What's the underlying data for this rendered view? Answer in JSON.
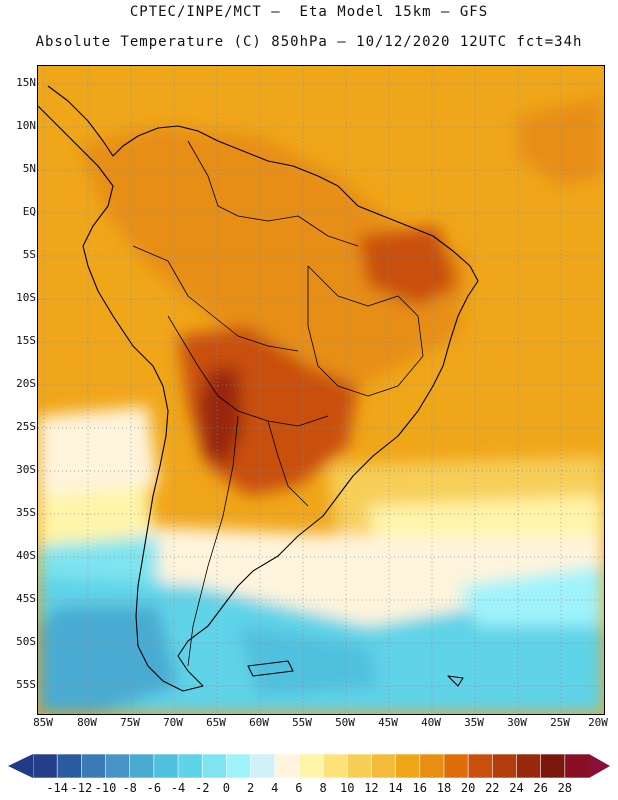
{
  "header": {
    "line1": "CPTEC/INPE/MCT –  Eta Model 15km – GFS",
    "line2": "Absolute Temperature (C) 850hPa – 10/12/2020 12UTC fct=34h"
  },
  "map": {
    "lat_labels": [
      "15N",
      "10N",
      "5N",
      "EQ",
      "5S",
      "10S",
      "15S",
      "20S",
      "25S",
      "30S",
      "35S",
      "40S",
      "45S",
      "50S",
      "55S"
    ],
    "lon_labels": [
      "85W",
      "80W",
      "75W",
      "70W",
      "65W",
      "60W",
      "55W",
      "50W",
      "45W",
      "40W",
      "35W",
      "30W",
      "25W",
      "20W"
    ]
  },
  "colorbar": {
    "labels": [
      "-14",
      "-12",
      "-10",
      "-8",
      "-6",
      "-4",
      "-2",
      "0",
      "2",
      "4",
      "6",
      "8",
      "10",
      "12",
      "14",
      "16",
      "18",
      "20",
      "22",
      "24",
      "26",
      "28"
    ],
    "colors": [
      "#233f8a",
      "#2a5a9f",
      "#3a7ab6",
      "#4a93c6",
      "#4aabd2",
      "#4fc0de",
      "#5fd3e8",
      "#7de4f0",
      "#9ff3fb",
      "#cff1f7",
      "#fff4dc",
      "#fff5a8",
      "#ffe27a",
      "#f7cf58",
      "#f4bb3c",
      "#f0a619",
      "#e78e13",
      "#df6e0a",
      "#c9500c",
      "#b23c0b",
      "#98280c",
      "#7a170c",
      "#8a0f24"
    ],
    "left_arrow_color": "#1f3a87",
    "right_arrow_color": "#8a0f34"
  }
}
